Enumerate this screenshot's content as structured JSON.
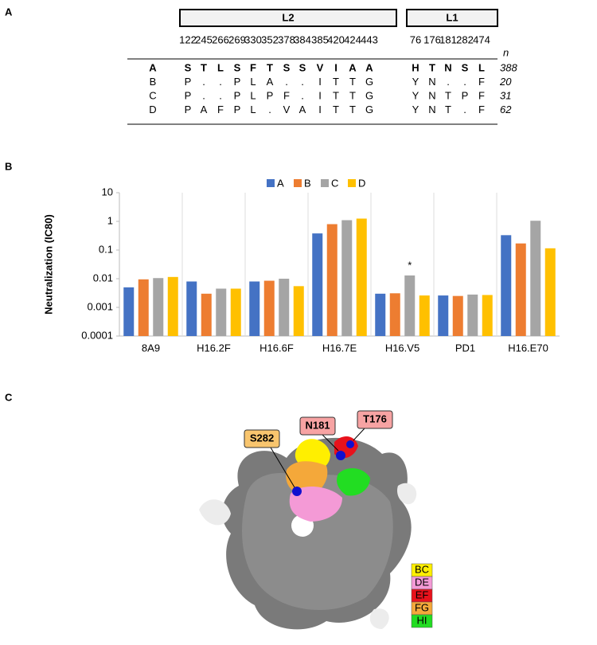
{
  "panel_a": {
    "label": "A",
    "groups": [
      {
        "name": "L2",
        "positions": [
          122,
          245,
          266,
          269,
          330,
          352,
          378,
          384,
          385,
          420,
          424,
          443
        ]
      },
      {
        "name": "L1",
        "positions": [
          76,
          176,
          181,
          282,
          474
        ]
      }
    ],
    "n_header": "n",
    "rows": [
      {
        "name": "A",
        "residues": [
          [
            "S",
            "T",
            "L",
            "S",
            "F",
            "T",
            "S",
            "S",
            "V",
            "I",
            "A",
            "A"
          ],
          [
            "H",
            "T",
            "N",
            "S",
            "L"
          ]
        ],
        "n": 388
      },
      {
        "name": "B",
        "residues": [
          [
            "P",
            ".",
            ".",
            "P",
            "L",
            "A",
            ".",
            ".",
            "I",
            "T",
            "T",
            "G"
          ],
          [
            "Y",
            "N",
            ".",
            ".",
            "F"
          ]
        ],
        "n": 20
      },
      {
        "name": "C",
        "residues": [
          [
            "P",
            ".",
            ".",
            "P",
            "L",
            "P",
            "F",
            ".",
            "I",
            "T",
            "T",
            "G"
          ],
          [
            "Y",
            "N",
            "T",
            "P",
            "F"
          ]
        ],
        "n": 31
      },
      {
        "name": "D",
        "residues": [
          [
            "P",
            "A",
            "F",
            "P",
            "L",
            ".",
            "V",
            "A",
            "I",
            "T",
            "T",
            "G"
          ],
          [
            "Y",
            "N",
            "T",
            ".",
            "F"
          ]
        ],
        "n": 62
      }
    ]
  },
  "panel_b": {
    "label": "B"
  },
  "chart_data": {
    "type": "bar",
    "y_label": "Neutralization (IC80)",
    "log_scale": true,
    "grid": true,
    "legend": "top",
    "annotation": "*",
    "categories": [
      "8A9",
      "H16.2F",
      "H16.6F",
      "H16.7E",
      "H16.V5",
      "PD1",
      "H16.E70"
    ],
    "series": [
      {
        "name": "A",
        "color": "#4472c4",
        "values": [
          0.005,
          0.008,
          0.008,
          0.38,
          0.003,
          0.0026,
          0.33
        ]
      },
      {
        "name": "B",
        "color": "#ed7d31",
        "values": [
          0.0095,
          0.003,
          0.0085,
          0.8,
          0.0031,
          0.0025,
          0.17
        ]
      },
      {
        "name": "C",
        "color": "#a5a5a5",
        "values": [
          0.0105,
          0.0045,
          0.01,
          1.1,
          0.013,
          0.0028,
          1.05
        ]
      },
      {
        "name": "D",
        "color": "#ffc000",
        "values": [
          0.0115,
          0.0045,
          0.0055,
          1.25,
          0.0026,
          0.0027,
          0.115
        ]
      }
    ],
    "ylim": [
      0.0001,
      10
    ],
    "yticks": [
      0.0001,
      0.001,
      0.01,
      0.1,
      1,
      10
    ]
  },
  "panel_c": {
    "label": "C",
    "callouts": [
      "S282",
      "N181",
      "T176"
    ],
    "legend": [
      "BC",
      "DE",
      "EF",
      "FG",
      "HI"
    ]
  }
}
